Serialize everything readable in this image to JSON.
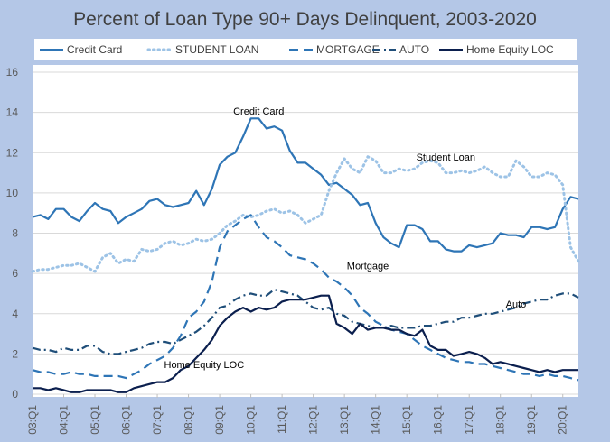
{
  "chart_data": {
    "type": "line",
    "title": "Percent of Loan Type 90+ Days Delinquent, 2003-2020",
    "xlabel": "",
    "ylabel": "",
    "ylim": [
      0,
      16
    ],
    "yticks": [
      0,
      2,
      4,
      6,
      8,
      10,
      12,
      14,
      16
    ],
    "x_tick_labels": [
      "03:Q1",
      "04:Q1",
      "05:Q1",
      "06:Q1",
      "07:Q1",
      "08:Q1",
      "09:Q1",
      "10:Q1",
      "11:Q1",
      "12:Q1",
      "13:Q1",
      "14:Q1",
      "15:Q1",
      "16:Q1",
      "17:Q1",
      "18:Q1",
      "19:Q1",
      "20:Q1"
    ],
    "grid": "horizontal",
    "legend_position": "top",
    "annotations": [
      {
        "text": "Credit Card",
        "x": 29,
        "y": 13.9
      },
      {
        "text": "Student Loan",
        "x": 53,
        "y": 11.6
      },
      {
        "text": "Mortgage",
        "x": 43,
        "y": 6.2
      },
      {
        "text": "Auto",
        "x": 62,
        "y": 4.3
      },
      {
        "text": "Home Equity LOC",
        "x": 22,
        "y": 1.3
      }
    ],
    "series": [
      {
        "name": "Credit Card",
        "color": "#2e75b6",
        "style": "solid",
        "values": [
          8.8,
          8.9,
          8.7,
          9.2,
          9.2,
          8.8,
          8.6,
          9.1,
          9.5,
          9.2,
          9.1,
          8.5,
          8.8,
          9.0,
          9.2,
          9.6,
          9.7,
          9.4,
          9.3,
          9.4,
          9.5,
          10.1,
          9.4,
          10.2,
          11.4,
          11.8,
          12.0,
          12.8,
          13.7,
          13.7,
          13.2,
          13.3,
          13.1,
          12.1,
          11.5,
          11.5,
          11.2,
          10.9,
          10.4,
          10.5,
          10.2,
          9.9,
          9.4,
          9.5,
          8.5,
          7.8,
          7.5,
          7.3,
          8.4,
          8.4,
          8.2,
          7.6,
          7.6,
          7.2,
          7.1,
          7.1,
          7.4,
          7.3,
          7.4,
          7.5,
          8.0,
          7.9,
          7.9,
          7.8,
          8.3,
          8.3,
          8.2,
          8.3,
          9.2,
          9.8,
          9.7
        ]
      },
      {
        "name": "STUDENT LOAN",
        "color": "#9dc3e6",
        "style": "dotted",
        "values": [
          6.1,
          6.2,
          6.2,
          6.3,
          6.4,
          6.4,
          6.5,
          6.3,
          6.1,
          6.8,
          7.0,
          6.5,
          6.7,
          6.6,
          7.2,
          7.1,
          7.2,
          7.5,
          7.6,
          7.4,
          7.5,
          7.7,
          7.6,
          7.7,
          8.0,
          8.4,
          8.6,
          8.9,
          8.8,
          8.9,
          9.1,
          9.2,
          9.0,
          9.1,
          8.9,
          8.5,
          8.7,
          8.9,
          10.1,
          11.0,
          11.7,
          11.2,
          11.0,
          11.8,
          11.6,
          11.0,
          11.0,
          11.2,
          11.1,
          11.2,
          11.5,
          11.6,
          11.5,
          11.0,
          11.0,
          11.1,
          11.0,
          11.1,
          11.3,
          11.0,
          10.8,
          10.8,
          11.6,
          11.3,
          10.8,
          10.8,
          11.0,
          10.9,
          10.4,
          7.3,
          6.6
        ]
      },
      {
        "name": "MORTGAGE",
        "color": "#2e75b6",
        "style": "dashed",
        "values": [
          1.2,
          1.1,
          1.1,
          1.0,
          1.0,
          1.1,
          1.0,
          1.0,
          0.9,
          0.9,
          0.9,
          0.9,
          0.8,
          1.0,
          1.2,
          1.5,
          1.7,
          1.9,
          2.3,
          2.9,
          3.8,
          4.1,
          4.6,
          5.6,
          7.3,
          8.1,
          8.4,
          8.7,
          8.9,
          8.3,
          7.8,
          7.6,
          7.3,
          6.9,
          6.8,
          6.7,
          6.5,
          6.2,
          5.8,
          5.6,
          5.3,
          4.9,
          4.3,
          4.0,
          3.6,
          3.4,
          3.2,
          3.1,
          3.0,
          2.7,
          2.4,
          2.2,
          2.0,
          1.8,
          1.7,
          1.6,
          1.6,
          1.5,
          1.5,
          1.4,
          1.3,
          1.2,
          1.1,
          1.0,
          1.0,
          0.9,
          1.0,
          0.9,
          0.9,
          0.8,
          0.7
        ]
      },
      {
        "name": "AUTO",
        "color": "#1f4e79",
        "style": "dashdot",
        "values": [
          2.3,
          2.2,
          2.2,
          2.1,
          2.3,
          2.2,
          2.2,
          2.4,
          2.4,
          2.1,
          2.0,
          2.0,
          2.1,
          2.2,
          2.3,
          2.5,
          2.6,
          2.6,
          2.5,
          2.7,
          2.9,
          3.1,
          3.4,
          3.8,
          4.3,
          4.4,
          4.7,
          4.9,
          5.0,
          4.9,
          4.9,
          5.2,
          5.1,
          5.0,
          4.9,
          4.6,
          4.3,
          4.2,
          4.3,
          4.0,
          3.9,
          3.6,
          3.5,
          3.4,
          3.3,
          3.3,
          3.4,
          3.3,
          3.3,
          3.3,
          3.4,
          3.4,
          3.5,
          3.6,
          3.6,
          3.8,
          3.8,
          3.9,
          4.0,
          4.0,
          4.1,
          4.2,
          4.3,
          4.5,
          4.6,
          4.7,
          4.7,
          4.9,
          5.0,
          5.0,
          4.8
        ]
      },
      {
        "name": "Home Equity LOC",
        "color": "#0b1f4e",
        "style": "solid",
        "values": [
          0.3,
          0.3,
          0.2,
          0.3,
          0.2,
          0.1,
          0.1,
          0.2,
          0.2,
          0.2,
          0.2,
          0.1,
          0.1,
          0.3,
          0.4,
          0.5,
          0.6,
          0.6,
          0.8,
          1.2,
          1.4,
          1.8,
          2.2,
          2.7,
          3.4,
          3.8,
          4.1,
          4.3,
          4.1,
          4.3,
          4.2,
          4.3,
          4.6,
          4.7,
          4.7,
          4.7,
          4.8,
          4.9,
          4.9,
          3.5,
          3.3,
          3.0,
          3.5,
          3.2,
          3.3,
          3.3,
          3.2,
          3.2,
          3.0,
          2.9,
          3.2,
          2.4,
          2.2,
          2.2,
          1.9,
          2.0,
          2.1,
          2.0,
          1.8,
          1.5,
          1.6,
          1.5,
          1.4,
          1.3,
          1.2,
          1.1,
          1.2,
          1.1,
          1.2,
          1.2,
          1.2
        ]
      }
    ]
  }
}
